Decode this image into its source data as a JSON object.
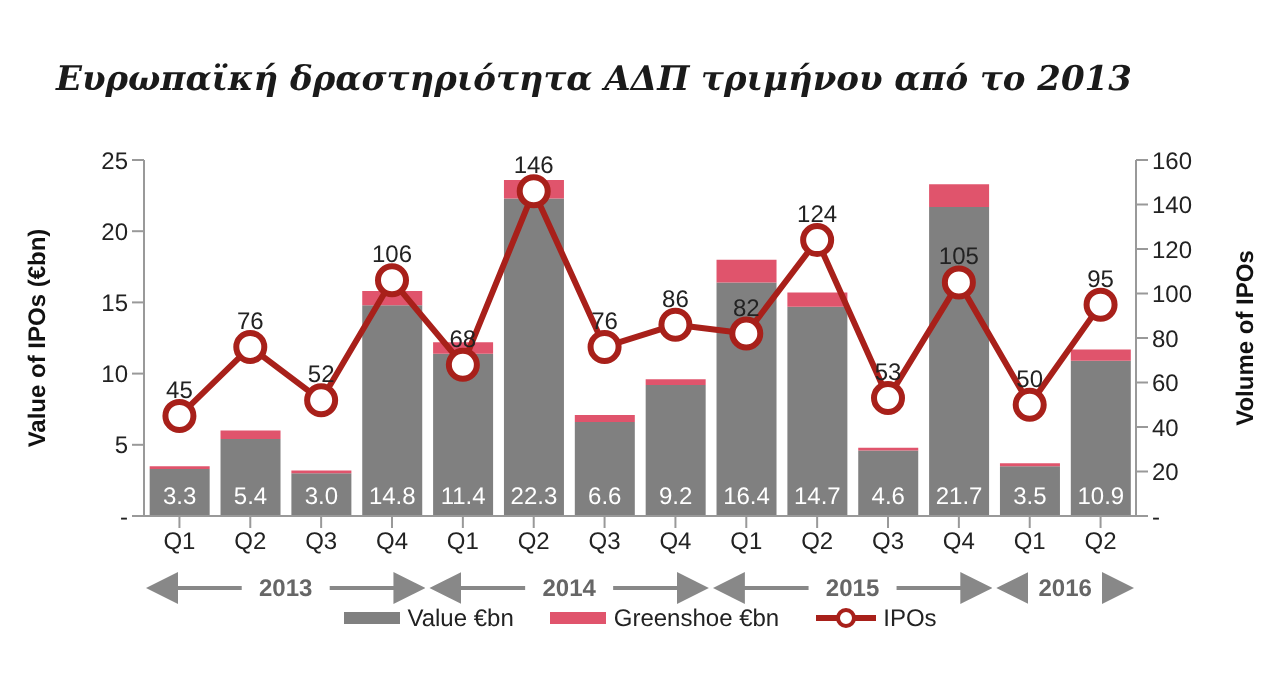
{
  "chart_data": {
    "type": "bar",
    "title": "Ευρωπαϊκή δραστηριότητα ΑΔΠ τριμήνου από το 2013",
    "ylabel": "Value of IPOs (€bn)",
    "y2label": "Volume of IPOs",
    "categories": [
      "Q1",
      "Q2",
      "Q3",
      "Q4",
      "Q1",
      "Q2",
      "Q3",
      "Q4",
      "Q1",
      "Q2",
      "Q3",
      "Q4",
      "Q1",
      "Q2"
    ],
    "annotations": [
      "2013",
      "2014",
      "2015",
      "2016"
    ],
    "stacked": true,
    "legend": "bottom",
    "grid": false,
    "ylim": [
      0,
      25
    ],
    "yticks": [
      {
        "value": 0,
        "label": "-"
      },
      5,
      10,
      15,
      20,
      25
    ],
    "y2lim": [
      0,
      160
    ],
    "y2ticks": [
      {
        "value": 0,
        "label": "-"
      },
      20,
      40,
      60,
      80,
      100,
      120,
      140,
      160
    ],
    "series": [
      {
        "name": "Value €bn",
        "color": "#808080",
        "values": [
          3.3,
          5.4,
          3.0,
          14.8,
          11.4,
          22.3,
          6.6,
          9.2,
          16.4,
          14.7,
          4.6,
          21.7,
          3.5,
          10.9
        ],
        "value_labels": [
          "3.3",
          "5.4",
          "3.0",
          "14.8",
          "11.4",
          "22.3",
          "6.6",
          "9.2",
          "16.4",
          "14.7",
          "4.6",
          "21.7",
          "3.5",
          "10.9"
        ]
      },
      {
        "name": "Greenshoe €bn",
        "color": "#e0546c",
        "values": [
          0.2,
          0.6,
          0.2,
          1.0,
          0.8,
          1.3,
          0.5,
          0.4,
          1.6,
          1.0,
          0.2,
          1.6,
          0.2,
          0.8
        ]
      },
      {
        "name": "IPOs",
        "type": "line",
        "axis": "y2",
        "color": "#a8201a",
        "marker": "circle",
        "line_style": "solid",
        "values": [
          45,
          76,
          52,
          106,
          68,
          146,
          76,
          86,
          82,
          124,
          53,
          105,
          50,
          95
        ],
        "data_labels": true
      }
    ]
  }
}
